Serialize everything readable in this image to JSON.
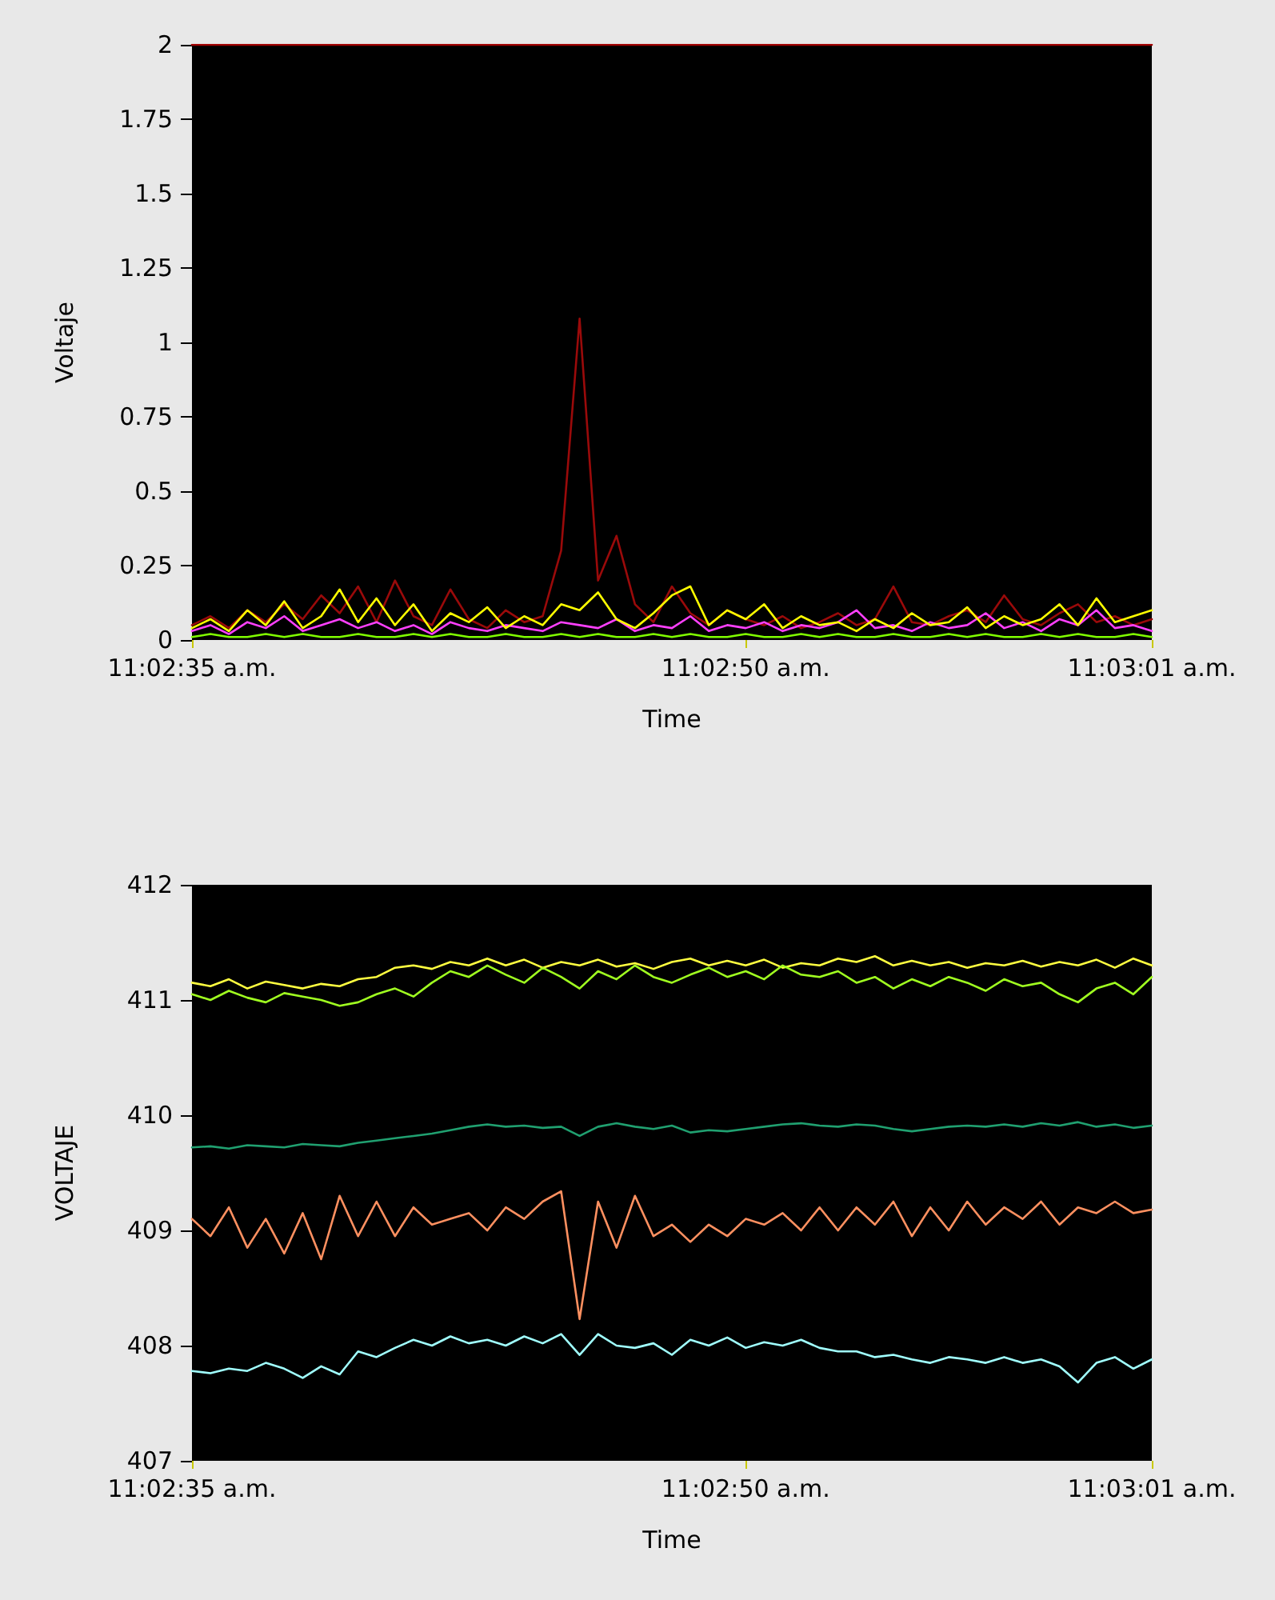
{
  "chart_data": [
    {
      "type": "line",
      "xlabel": "Time",
      "ylabel": "Voltaje",
      "marker": "none",
      "line_style": "solid",
      "grid": false,
      "xlim": [
        11.0430556,
        11.0502778
      ],
      "xticks": [
        {
          "value": 11.0430556,
          "label": "11:02:35 a.m."
        },
        {
          "value": 11.0472222,
          "label": "11:02:50 a.m."
        },
        {
          "value": 11.0502778,
          "label": "11:03:01 a.m."
        }
      ],
      "ylim": [
        0,
        2
      ],
      "yticks": [
        0,
        0.25,
        0.5,
        0.75,
        1,
        1.25,
        1.5,
        1.75,
        2
      ],
      "x": [
        11.0430556,
        11.0431944,
        11.0433333,
        11.0434722,
        11.0436111,
        11.04375,
        11.0438889,
        11.0440278,
        11.0441667,
        11.0443056,
        11.0444444,
        11.0445833,
        11.0447222,
        11.0448611,
        11.045,
        11.0451389,
        11.0452778,
        11.0454167,
        11.0455556,
        11.0456944,
        11.0458333,
        11.0459722,
        11.0461111,
        11.04625,
        11.0463889,
        11.0465278,
        11.0466667,
        11.0468056,
        11.0469444,
        11.0470833,
        11.0472222,
        11.0473611,
        11.0475,
        11.0476389,
        11.0477778,
        11.0479167,
        11.0480556,
        11.0481944,
        11.0483333,
        11.0484722,
        11.0486111,
        11.04875,
        11.0488889,
        11.0490278,
        11.0491667,
        11.0493056,
        11.0494444,
        11.0495833,
        11.0497222,
        11.0498611,
        11.05,
        11.0501389,
        11.0502778
      ],
      "series": [
        {
          "color": "#a00000",
          "x": [
            11.0430556,
            11.0502778
          ],
          "values": [
            2,
            2
          ]
        },
        {
          "color": "#9a0a0a",
          "values": [
            0.05,
            0.08,
            0.04,
            0.1,
            0.06,
            0.12,
            0.07,
            0.15,
            0.09,
            0.18,
            0.06,
            0.2,
            0.08,
            0.05,
            0.17,
            0.07,
            0.04,
            0.1,
            0.06,
            0.08,
            0.3,
            1.08,
            0.2,
            0.35,
            0.12,
            0.06,
            0.18,
            0.09,
            0.05,
            0.1,
            0.07,
            0.05,
            0.08,
            0.04,
            0.06,
            0.09,
            0.05,
            0.07,
            0.18,
            0.06,
            0.05,
            0.08,
            0.1,
            0.06,
            0.15,
            0.07,
            0.05,
            0.09,
            0.12,
            0.06,
            0.08,
            0.05,
            0.07
          ]
        },
        {
          "color": "#ff40ff",
          "values": [
            0.03,
            0.05,
            0.02,
            0.06,
            0.04,
            0.08,
            0.03,
            0.05,
            0.07,
            0.04,
            0.06,
            0.03,
            0.05,
            0.02,
            0.06,
            0.04,
            0.03,
            0.05,
            0.04,
            0.03,
            0.06,
            0.05,
            0.04,
            0.07,
            0.03,
            0.05,
            0.04,
            0.08,
            0.03,
            0.05,
            0.04,
            0.06,
            0.03,
            0.05,
            0.04,
            0.06,
            0.1,
            0.04,
            0.05,
            0.03,
            0.06,
            0.04,
            0.05,
            0.09,
            0.04,
            0.06,
            0.03,
            0.07,
            0.05,
            0.1,
            0.04,
            0.05,
            0.03
          ]
        },
        {
          "color": "#ffff00",
          "values": [
            0.04,
            0.07,
            0.03,
            0.1,
            0.05,
            0.13,
            0.04,
            0.08,
            0.17,
            0.06,
            0.14,
            0.05,
            0.12,
            0.03,
            0.09,
            0.06,
            0.11,
            0.04,
            0.08,
            0.05,
            0.12,
            0.1,
            0.16,
            0.07,
            0.04,
            0.09,
            0.15,
            0.18,
            0.05,
            0.1,
            0.07,
            0.12,
            0.04,
            0.08,
            0.05,
            0.06,
            0.03,
            0.07,
            0.04,
            0.09,
            0.05,
            0.06,
            0.11,
            0.04,
            0.08,
            0.05,
            0.07,
            0.12,
            0.05,
            0.14,
            0.06,
            0.08,
            0.1
          ]
        },
        {
          "color": "#80ff00",
          "values": [
            0.01,
            0.02,
            0.01,
            0.01,
            0.02,
            0.01,
            0.02,
            0.01,
            0.01,
            0.02,
            0.01,
            0.01,
            0.02,
            0.01,
            0.02,
            0.01,
            0.01,
            0.02,
            0.01,
            0.01,
            0.02,
            0.01,
            0.02,
            0.01,
            0.01,
            0.02,
            0.01,
            0.02,
            0.01,
            0.01,
            0.02,
            0.01,
            0.01,
            0.02,
            0.01,
            0.02,
            0.01,
            0.01,
            0.02,
            0.01,
            0.01,
            0.02,
            0.01,
            0.02,
            0.01,
            0.01,
            0.02,
            0.01,
            0.02,
            0.01,
            0.01,
            0.02,
            0.01
          ]
        }
      ]
    },
    {
      "type": "line",
      "xlabel": "Time",
      "ylabel": "VOLTAJE",
      "marker": "none",
      "line_style": "solid",
      "grid": false,
      "xlim": [
        11.0430556,
        11.0502778
      ],
      "xticks": [
        {
          "value": 11.0430556,
          "label": "11:02:35 a.m."
        },
        {
          "value": 11.0472222,
          "label": "11:02:50 a.m."
        },
        {
          "value": 11.0502778,
          "label": "11:03:01 a.m."
        }
      ],
      "ylim": [
        407,
        412
      ],
      "yticks": [
        407,
        408,
        409,
        410,
        411,
        412
      ],
      "x": [
        11.0430556,
        11.0431944,
        11.0433333,
        11.0434722,
        11.0436111,
        11.04375,
        11.0438889,
        11.0440278,
        11.0441667,
        11.0443056,
        11.0444444,
        11.0445833,
        11.0447222,
        11.0448611,
        11.045,
        11.0451389,
        11.0452778,
        11.0454167,
        11.0455556,
        11.0456944,
        11.0458333,
        11.0459722,
        11.0461111,
        11.04625,
        11.0463889,
        11.0465278,
        11.0466667,
        11.0468056,
        11.0469444,
        11.0470833,
        11.0472222,
        11.0473611,
        11.0475,
        11.0476389,
        11.0477778,
        11.0479167,
        11.0480556,
        11.0481944,
        11.0483333,
        11.0484722,
        11.0486111,
        11.04875,
        11.0488889,
        11.0490278,
        11.0491667,
        11.0493056,
        11.0494444,
        11.0495833,
        11.0497222,
        11.0498611,
        11.05,
        11.0501389,
        11.0502778
      ],
      "series": [
        {
          "color": "#ffff40",
          "values": [
            411.15,
            411.12,
            411.18,
            411.1,
            411.16,
            411.13,
            411.1,
            411.14,
            411.12,
            411.18,
            411.2,
            411.28,
            411.3,
            411.27,
            411.33,
            411.3,
            411.36,
            411.3,
            411.35,
            411.28,
            411.33,
            411.3,
            411.35,
            411.29,
            411.32,
            411.27,
            411.33,
            411.36,
            411.3,
            411.34,
            411.3,
            411.35,
            411.28,
            411.32,
            411.3,
            411.36,
            411.33,
            411.38,
            411.3,
            411.34,
            411.3,
            411.33,
            411.28,
            411.32,
            411.3,
            411.34,
            411.29,
            411.33,
            411.3,
            411.35,
            411.28,
            411.36,
            411.3
          ]
        },
        {
          "color": "#a0ff20",
          "values": [
            411.05,
            411.0,
            411.08,
            411.02,
            410.98,
            411.06,
            411.03,
            411.0,
            410.95,
            410.98,
            411.05,
            411.1,
            411.03,
            411.15,
            411.25,
            411.2,
            411.3,
            411.22,
            411.15,
            411.28,
            411.2,
            411.1,
            411.25,
            411.18,
            411.3,
            411.2,
            411.15,
            411.22,
            411.28,
            411.2,
            411.25,
            411.18,
            411.3,
            411.22,
            411.2,
            411.25,
            411.15,
            411.2,
            411.1,
            411.18,
            411.12,
            411.2,
            411.15,
            411.08,
            411.18,
            411.12,
            411.15,
            411.05,
            410.98,
            411.1,
            411.15,
            411.05,
            411.2
          ]
        },
        {
          "color": "#20a070",
          "values": [
            409.72,
            409.73,
            409.71,
            409.74,
            409.73,
            409.72,
            409.75,
            409.74,
            409.73,
            409.76,
            409.78,
            409.8,
            409.82,
            409.84,
            409.87,
            409.9,
            409.92,
            409.9,
            409.91,
            409.89,
            409.9,
            409.82,
            409.9,
            409.93,
            409.9,
            409.88,
            409.91,
            409.85,
            409.87,
            409.86,
            409.88,
            409.9,
            409.92,
            409.93,
            409.91,
            409.9,
            409.92,
            409.91,
            409.88,
            409.86,
            409.88,
            409.9,
            409.91,
            409.9,
            409.92,
            409.9,
            409.93,
            409.91,
            409.94,
            409.9,
            409.92,
            409.89,
            409.91
          ]
        },
        {
          "color": "#ff9060",
          "values": [
            409.1,
            408.95,
            409.2,
            408.85,
            409.1,
            408.8,
            409.15,
            408.75,
            409.3,
            408.95,
            409.25,
            408.95,
            409.2,
            409.05,
            409.1,
            409.15,
            409.0,
            409.2,
            409.1,
            409.25,
            409.34,
            408.23,
            409.25,
            408.85,
            409.3,
            408.95,
            409.05,
            408.9,
            409.05,
            408.95,
            409.1,
            409.05,
            409.15,
            409.0,
            409.2,
            409.0,
            409.2,
            409.05,
            409.25,
            408.95,
            409.2,
            409.0,
            409.25,
            409.05,
            409.2,
            409.1,
            409.25,
            409.05,
            409.2,
            409.15,
            409.25,
            409.15,
            409.18
          ]
        },
        {
          "color": "#a0ffff",
          "values": [
            407.78,
            407.76,
            407.8,
            407.78,
            407.85,
            407.8,
            407.72,
            407.82,
            407.75,
            407.95,
            407.9,
            407.98,
            408.05,
            408.0,
            408.08,
            408.02,
            408.05,
            408.0,
            408.08,
            408.02,
            408.1,
            407.92,
            408.1,
            408.0,
            407.98,
            408.02,
            407.92,
            408.05,
            408.0,
            408.07,
            407.98,
            408.03,
            408.0,
            408.05,
            407.98,
            407.95,
            407.95,
            407.9,
            407.92,
            407.88,
            407.85,
            407.9,
            407.88,
            407.85,
            407.9,
            407.85,
            407.88,
            407.82,
            407.68,
            407.85,
            407.9,
            407.8,
            407.88
          ]
        }
      ]
    }
  ]
}
